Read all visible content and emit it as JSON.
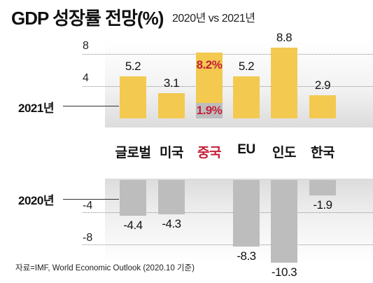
{
  "header": {
    "title": "GDP 성장률 전망(%)",
    "subtitle": "2020년 vs 2021년"
  },
  "source": "자료=IMF, World Economic Outlook (2020.10 기준)",
  "colors": {
    "bar_2021": "#f3c950",
    "bar_2020": "#bdbdbd",
    "highlight": "#c4203a"
  },
  "chart_data": {
    "type": "bar",
    "categories": [
      "글로벌",
      "미국",
      "중국",
      "EU",
      "인도",
      "한국"
    ],
    "highlight_category": "중국",
    "series": [
      {
        "name": "2021년",
        "values": [
          5.2,
          3.1,
          8.2,
          5.2,
          8.8,
          2.9
        ]
      },
      {
        "name": "2020년",
        "values": [
          -4.4,
          -4.3,
          1.9,
          -8.3,
          -10.3,
          -1.9
        ]
      }
    ],
    "value_labels": {
      "2021년": [
        "5.2",
        "3.1",
        "8.2%",
        "5.2",
        "8.8",
        "2.9"
      ],
      "2020년": [
        "-4.4",
        "-4.3",
        "1.9%",
        "-8.3",
        "-10.3",
        "-1.9"
      ]
    },
    "top_panel": {
      "ylim": [
        0,
        8
      ],
      "ticks": [
        "8",
        "4"
      ],
      "tick_values": [
        8,
        4
      ]
    },
    "bottom_panel": {
      "ylim": [
        -8,
        0
      ],
      "ticks": [
        "-4",
        "-8"
      ],
      "tick_values": [
        -4,
        -8
      ]
    },
    "grid": true,
    "legend": "none"
  }
}
